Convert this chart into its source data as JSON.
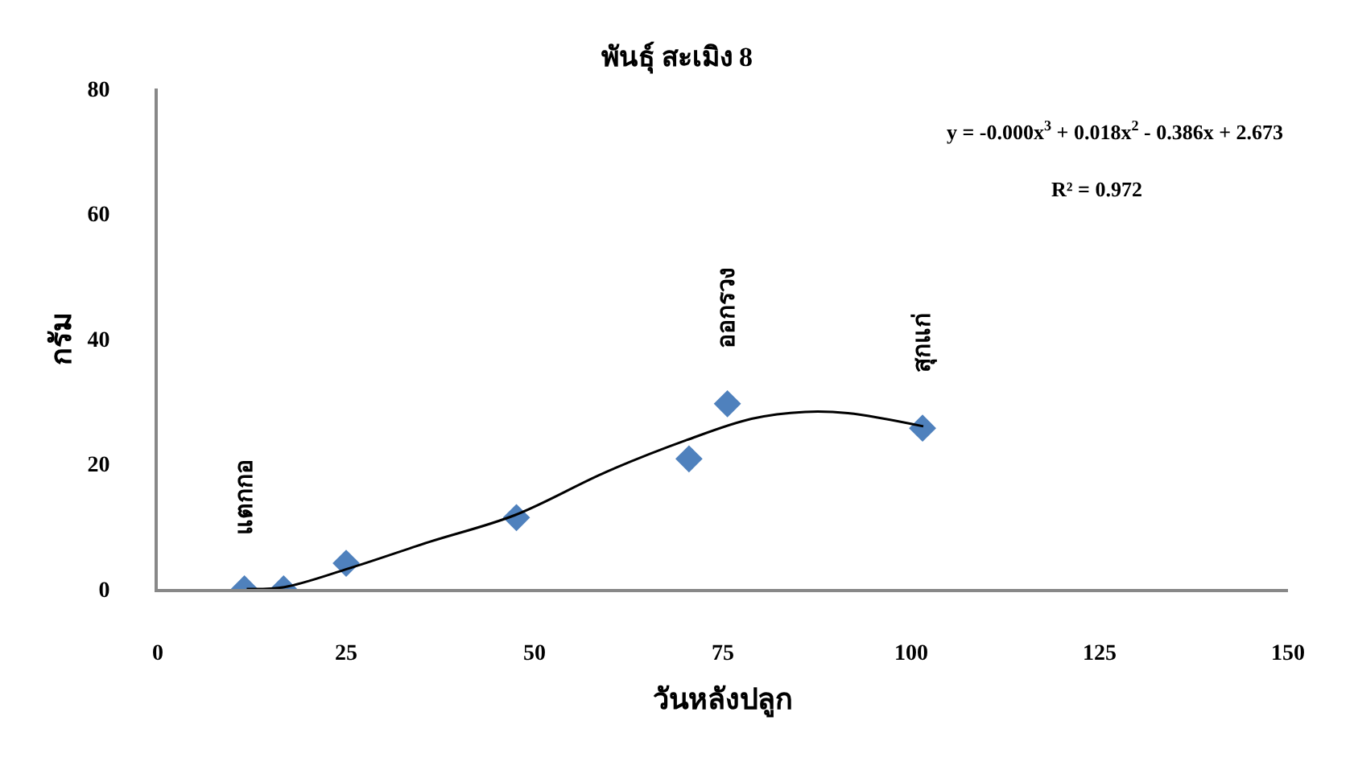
{
  "chart_data": {
    "type": "scatter",
    "title": "พันธุ์ สะเมิง 8",
    "xlabel": "วันหลังปลูก",
    "ylabel": "กรัม",
    "xlim": [
      0,
      150
    ],
    "xticks": [
      0,
      25,
      50,
      75,
      100,
      125,
      150
    ],
    "ylim": [
      0,
      80
    ],
    "yticks": [
      0,
      20,
      40,
      60,
      80
    ],
    "marker": "diamond",
    "series": [
      {
        "color": "#4f81bd",
        "x": [
          11.5,
          16.7,
          25,
          47.6,
          70.5,
          75.6,
          101.5
        ],
        "values": [
          0,
          0,
          4.1,
          11.4,
          20.8,
          29.6,
          25.7
        ]
      },
      {
        "type": "line",
        "color": "#000000",
        "marker": "none",
        "line_style": "solid",
        "x": [
          11.8,
          16.8,
          25.4,
          36.0,
          47.4,
          59.5,
          70.2,
          78.8,
          85.9,
          91.6,
          101.6
        ],
        "values": [
          0,
          0.3,
          3.3,
          7.5,
          11.8,
          18.7,
          23.8,
          27.2,
          28.3,
          28.1,
          26.0
        ]
      }
    ],
    "annotations": [
      {
        "text": "แตกกอ",
        "x": 11.5,
        "y": 0
      },
      {
        "text": "ออกรวง",
        "x": 75.6,
        "y": 29.6
      },
      {
        "text": "สุกแก่",
        "x": 101.5,
        "y": 25.7
      },
      "y = -0.000x$^{3}$ + 0.018x$^{2}$ - 0.386x + 2.673",
      "R² = 0.972"
    ]
  }
}
